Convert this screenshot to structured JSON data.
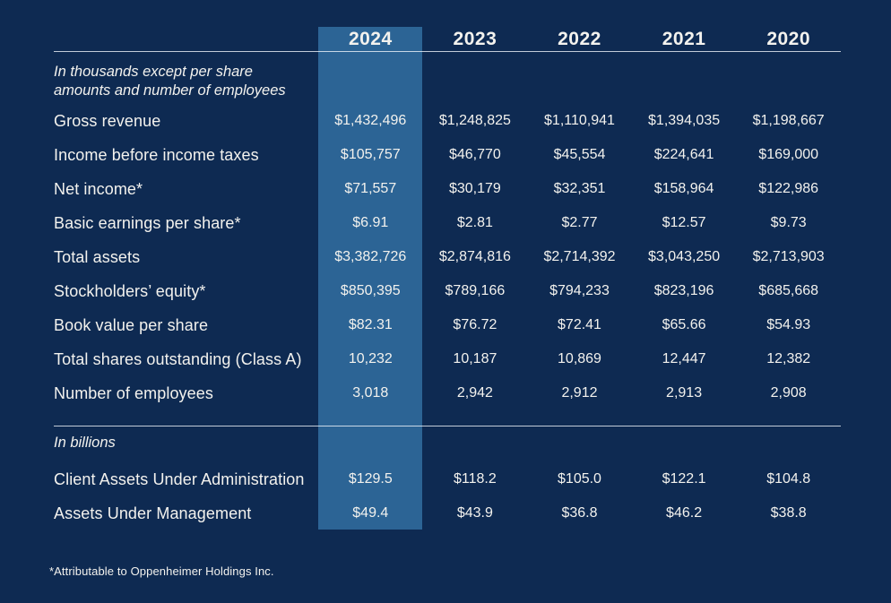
{
  "colors": {
    "background": "#0e2a52",
    "highlight_column": "#2c6495",
    "text": "#f3f2ee",
    "rule": "#c6d0de"
  },
  "table": {
    "years": [
      "2024",
      "2023",
      "2022",
      "2021",
      "2020"
    ],
    "highlighted_year": "2024",
    "section1": {
      "note_lines": [
        "In thousands except per share",
        "amounts and number of employees"
      ],
      "rows": [
        {
          "label": "Gross revenue",
          "values": [
            "$1,432,496",
            "$1,248,825",
            "$1,110,941",
            "$1,394,035",
            "$1,198,667"
          ]
        },
        {
          "label": "Income before income taxes",
          "values": [
            "$105,757",
            "$46,770",
            "$45,554",
            "$224,641",
            "$169,000"
          ]
        },
        {
          "label": "Net income*",
          "values": [
            "$71,557",
            "$30,179",
            "$32,351",
            "$158,964",
            "$122,986"
          ]
        },
        {
          "label": "Basic earnings per share*",
          "values": [
            "$6.91",
            "$2.81",
            "$2.77",
            "$12.57",
            "$9.73"
          ]
        },
        {
          "label": "Total assets",
          "values": [
            "$3,382,726",
            "$2,874,816",
            "$2,714,392",
            "$3,043,250",
            "$2,713,903"
          ]
        },
        {
          "label": "Stockholders’ equity*",
          "values": [
            "$850,395",
            "$789,166",
            "$794,233",
            "$823,196",
            "$685,668"
          ]
        },
        {
          "label": "Book value per share",
          "values": [
            "$82.31",
            "$76.72",
            "$72.41",
            "$65.66",
            "$54.93"
          ]
        },
        {
          "label": "Total shares outstanding (Class A)",
          "values": [
            "10,232",
            "10,187",
            "10,869",
            "12,447",
            "12,382"
          ]
        },
        {
          "label": "Number of employees",
          "values": [
            "3,018",
            "2,942",
            "2,912",
            "2,913",
            "2,908"
          ]
        }
      ]
    },
    "section2": {
      "note": "In billions",
      "rows": [
        {
          "label": "Client Assets Under Administration",
          "values": [
            "$129.5",
            "$118.2",
            "$105.0",
            "$122.1",
            "$104.8"
          ]
        },
        {
          "label": "Assets Under Management",
          "values": [
            "$49.4",
            "$43.9",
            "$36.8",
            "$46.2",
            "$38.8"
          ]
        }
      ]
    },
    "footnote": "*Attributable to Oppenheimer Holdings Inc."
  }
}
